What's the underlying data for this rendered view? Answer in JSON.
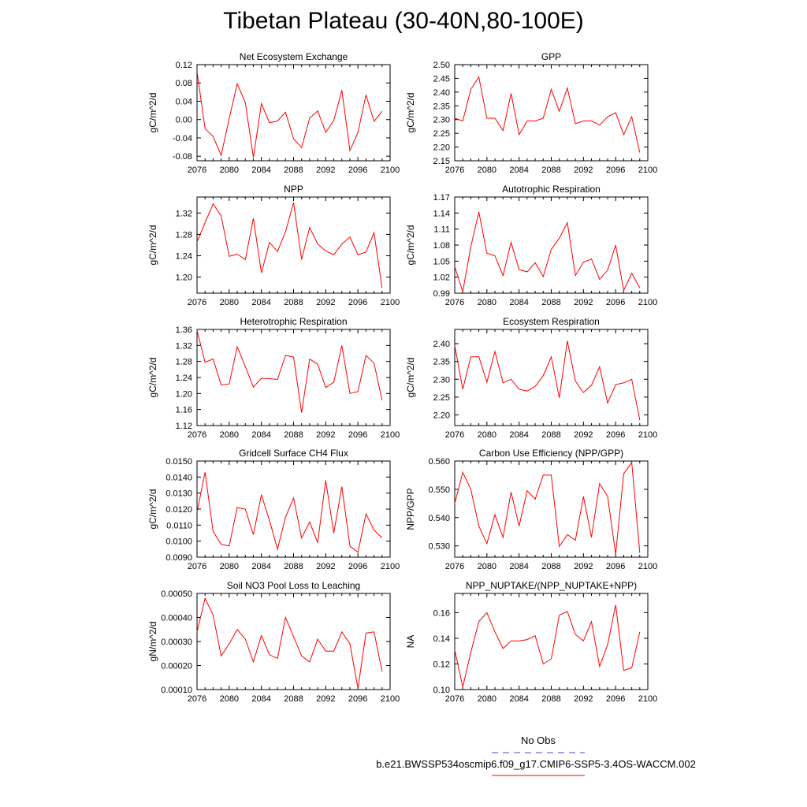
{
  "page": {
    "title": "Tibetan Plateau (30-40N,80-100E)"
  },
  "legend": {
    "obs_label": "No Obs",
    "obs_color": "#4444cc",
    "case_label": "b.e21.BWSSP534oscmip6.f09_g17.CMIP6-SSP5-3.4OS-WACCM.002",
    "case_color": "#ff0000"
  },
  "chart_data": [
    {
      "type": "line",
      "title": "Net Ecosystem Exchange",
      "ylabel": "gC/m^2/d",
      "xlim": [
        2076,
        2100
      ],
      "x_ticks": [
        "2076",
        "2080",
        "2084",
        "2088",
        "2092",
        "2096",
        "2100"
      ],
      "ylim": [
        -0.09,
        0.12
      ],
      "y_ticks": [
        "-0.08",
        "-0.04",
        "0.00",
        "0.04",
        "0.08",
        "0.12"
      ],
      "series": [
        {
          "color": "#ff0000",
          "x": [
            2076,
            2077,
            2078,
            2079,
            2080,
            2081,
            2082,
            2083,
            2084,
            2085,
            2086,
            2087,
            2088,
            2089,
            2090,
            2091,
            2092,
            2093,
            2094,
            2095,
            2096,
            2097,
            2098,
            2099
          ],
          "values": [
            0.105,
            -0.02,
            -0.037,
            -0.078,
            0.002,
            0.078,
            0.037,
            -0.083,
            0.035,
            -0.007,
            -0.003,
            0.016,
            -0.042,
            -0.061,
            0.003,
            0.019,
            -0.028,
            -0.002,
            0.064,
            -0.068,
            -0.028,
            0.054,
            -0.004,
            0.018
          ]
        }
      ]
    },
    {
      "type": "line",
      "title": "GPP",
      "ylabel": "gC/m^2/d",
      "xlim": [
        2076,
        2100
      ],
      "x_ticks": [
        "2076",
        "2080",
        "2084",
        "2088",
        "2092",
        "2096",
        "2100"
      ],
      "ylim": [
        2.15,
        2.5
      ],
      "y_ticks": [
        "2.15",
        "2.20",
        "2.25",
        "2.30",
        "2.35",
        "2.40",
        "2.45",
        "2.50"
      ],
      "series": [
        {
          "color": "#ff0000",
          "x": [
            2076,
            2077,
            2078,
            2079,
            2080,
            2081,
            2082,
            2083,
            2084,
            2085,
            2086,
            2087,
            2088,
            2089,
            2090,
            2091,
            2092,
            2093,
            2094,
            2095,
            2096,
            2097,
            2098,
            2099
          ],
          "values": [
            2.305,
            2.295,
            2.41,
            2.455,
            2.305,
            2.305,
            2.26,
            2.395,
            2.245,
            2.295,
            2.295,
            2.305,
            2.41,
            2.33,
            2.415,
            2.285,
            2.295,
            2.295,
            2.28,
            2.31,
            2.325,
            2.245,
            2.31,
            2.18
          ]
        }
      ]
    },
    {
      "type": "line",
      "title": "NPP",
      "ylabel": "gC/m^2/d",
      "xlim": [
        2076,
        2100
      ],
      "x_ticks": [
        "2076",
        "2080",
        "2084",
        "2088",
        "2092",
        "2096",
        "2100"
      ],
      "ylim": [
        1.17,
        1.35
      ],
      "y_ticks": [
        "1.20",
        "1.24",
        "1.28",
        "1.32"
      ],
      "series": [
        {
          "color": "#ff0000",
          "x": [
            2076,
            2077,
            2078,
            2079,
            2080,
            2081,
            2082,
            2083,
            2084,
            2085,
            2086,
            2087,
            2088,
            2089,
            2090,
            2091,
            2092,
            2093,
            2094,
            2095,
            2096,
            2097,
            2098,
            2099
          ],
          "values": [
            1.266,
            1.302,
            1.337,
            1.315,
            1.239,
            1.243,
            1.233,
            1.31,
            1.208,
            1.265,
            1.248,
            1.285,
            1.34,
            1.233,
            1.293,
            1.262,
            1.249,
            1.242,
            1.262,
            1.275,
            1.242,
            1.247,
            1.283,
            1.18
          ]
        }
      ]
    },
    {
      "type": "line",
      "title": "Autotrophic Respiration",
      "ylabel": "gC/m^2/d",
      "xlim": [
        2076,
        2100
      ],
      "x_ticks": [
        "2076",
        "2080",
        "2084",
        "2088",
        "2092",
        "2096",
        "2100"
      ],
      "ylim": [
        0.99,
        1.17
      ],
      "y_ticks": [
        "0.99",
        "1.02",
        "1.05",
        "1.08",
        "1.11",
        "1.14",
        "1.17"
      ],
      "series": [
        {
          "color": "#ff0000",
          "x": [
            2076,
            2077,
            2078,
            2079,
            2080,
            2081,
            2082,
            2083,
            2084,
            2085,
            2086,
            2087,
            2088,
            2089,
            2090,
            2091,
            2092,
            2093,
            2094,
            2095,
            2096,
            2097,
            2098,
            2099
          ],
          "values": [
            1.04,
            0.993,
            1.077,
            1.142,
            1.065,
            1.06,
            1.023,
            1.085,
            1.034,
            1.03,
            1.047,
            1.021,
            1.072,
            1.093,
            1.122,
            1.023,
            1.048,
            1.054,
            1.016,
            1.033,
            1.08,
            0.995,
            1.027,
            1.0
          ]
        }
      ]
    },
    {
      "type": "line",
      "title": "Heterotrophic Respiration",
      "ylabel": "gC/m^2/d",
      "xlim": [
        2076,
        2100
      ],
      "x_ticks": [
        "2076",
        "2080",
        "2084",
        "2088",
        "2092",
        "2096",
        "2100"
      ],
      "ylim": [
        1.12,
        1.36
      ],
      "y_ticks": [
        "1.12",
        "1.16",
        "1.20",
        "1.24",
        "1.28",
        "1.32",
        "1.36"
      ],
      "series": [
        {
          "color": "#ff0000",
          "x": [
            2076,
            2077,
            2078,
            2079,
            2080,
            2081,
            2082,
            2083,
            2084,
            2085,
            2086,
            2087,
            2088,
            2089,
            2090,
            2091,
            2092,
            2093,
            2094,
            2095,
            2096,
            2097,
            2098,
            2099
          ],
          "values": [
            1.357,
            1.278,
            1.286,
            1.221,
            1.224,
            1.317,
            1.267,
            1.216,
            1.238,
            1.237,
            1.235,
            1.295,
            1.291,
            1.152,
            1.286,
            1.273,
            1.215,
            1.228,
            1.32,
            1.2,
            1.205,
            1.295,
            1.276,
            1.183
          ]
        }
      ]
    },
    {
      "type": "line",
      "title": "Ecosystem Respiration",
      "ylabel": "gC/m^2/d",
      "xlim": [
        2076,
        2100
      ],
      "x_ticks": [
        "2076",
        "2080",
        "2084",
        "2088",
        "2092",
        "2096",
        "2100"
      ],
      "ylim": [
        2.17,
        2.44
      ],
      "y_ticks": [
        "2.20",
        "2.25",
        "2.30",
        "2.35",
        "2.40"
      ],
      "series": [
        {
          "color": "#ff0000",
          "x": [
            2076,
            2077,
            2078,
            2079,
            2080,
            2081,
            2082,
            2083,
            2084,
            2085,
            2086,
            2087,
            2088,
            2089,
            2090,
            2091,
            2092,
            2093,
            2094,
            2095,
            2096,
            2097,
            2098,
            2099
          ],
          "values": [
            2.395,
            2.272,
            2.363,
            2.363,
            2.292,
            2.378,
            2.29,
            2.3,
            2.272,
            2.267,
            2.28,
            2.31,
            2.363,
            2.248,
            2.408,
            2.295,
            2.263,
            2.283,
            2.335,
            2.233,
            2.285,
            2.29,
            2.3,
            2.185
          ]
        }
      ]
    },
    {
      "type": "line",
      "title": "Gridcell Surface CH4 Flux",
      "ylabel": "gC/m^2/d",
      "xlim": [
        2076,
        2100
      ],
      "x_ticks": [
        "2076",
        "2080",
        "2084",
        "2088",
        "2092",
        "2096",
        "2100"
      ],
      "ylim": [
        0.009,
        0.015
      ],
      "y_ticks": [
        "0.0090",
        "0.0100",
        "0.0110",
        "0.0120",
        "0.0130",
        "0.0140",
        "0.0150"
      ],
      "series": [
        {
          "color": "#ff0000",
          "x": [
            2076,
            2077,
            2078,
            2079,
            2080,
            2081,
            2082,
            2083,
            2084,
            2085,
            2086,
            2087,
            2088,
            2089,
            2090,
            2091,
            2092,
            2093,
            2094,
            2095,
            2096,
            2097,
            2098,
            2099
          ],
          "values": [
            0.0118,
            0.0143,
            0.0106,
            0.0098,
            0.0097,
            0.0121,
            0.012,
            0.0104,
            0.0129,
            0.0113,
            0.0095,
            0.0115,
            0.0127,
            0.0102,
            0.0112,
            0.0099,
            0.0138,
            0.0105,
            0.0134,
            0.0097,
            0.0093,
            0.0117,
            0.0107,
            0.0102
          ]
        }
      ]
    },
    {
      "type": "line",
      "title": "Carbon Use Efficiency (NPP/GPP)",
      "ylabel": "NPP/GPP",
      "xlim": [
        2076,
        2100
      ],
      "x_ticks": [
        "2076",
        "2080",
        "2084",
        "2088",
        "2092",
        "2096",
        "2100"
      ],
      "ylim": [
        0.526,
        0.56
      ],
      "y_ticks": [
        "0.530",
        "0.540",
        "0.550",
        "0.560"
      ],
      "series": [
        {
          "color": "#ff0000",
          "x": [
            2076,
            2077,
            2078,
            2079,
            2080,
            2081,
            2082,
            2083,
            2084,
            2085,
            2086,
            2087,
            2088,
            2089,
            2090,
            2091,
            2092,
            2093,
            2094,
            2095,
            2096,
            2097,
            2098,
            2099
          ],
          "values": [
            0.545,
            0.556,
            0.55,
            0.537,
            0.5308,
            0.541,
            0.533,
            0.549,
            0.537,
            0.5495,
            0.5465,
            0.555,
            0.555,
            0.5298,
            0.534,
            0.532,
            0.5475,
            0.533,
            0.552,
            0.5475,
            0.527,
            0.5555,
            0.5595,
            0.5275
          ]
        }
      ]
    },
    {
      "type": "line",
      "title": "Soil NO3 Pool Loss to Leaching",
      "ylabel": "gN/m^2/d",
      "xlim": [
        2076,
        2100
      ],
      "x_ticks": [
        "2076",
        "2080",
        "2084",
        "2088",
        "2092",
        "2096",
        "2100"
      ],
      "ylim": [
        0.0001,
        0.0005
      ],
      "y_ticks": [
        "0.00010",
        "0.00020",
        "0.00030",
        "0.00040",
        "0.00050"
      ],
      "series": [
        {
          "color": "#ff0000",
          "x": [
            2076,
            2077,
            2078,
            2079,
            2080,
            2081,
            2082,
            2083,
            2084,
            2085,
            2086,
            2087,
            2088,
            2089,
            2090,
            2091,
            2092,
            2093,
            2094,
            2095,
            2096,
            2097,
            2098,
            2099
          ],
          "values": [
            0.00034,
            0.00048,
            0.00041,
            0.00024,
            0.00029,
            0.00035,
            0.00031,
            0.000215,
            0.000325,
            0.000245,
            0.00023,
            0.0004,
            0.00032,
            0.00024,
            0.000215,
            0.00031,
            0.00026,
            0.00026,
            0.00034,
            0.00029,
            0.000105,
            0.000335,
            0.00034,
            0.000175
          ]
        }
      ]
    },
    {
      "type": "line",
      "title": "NPP_NUPTAKE/(NPP_NUPTAKE+NPP)",
      "ylabel": "NA",
      "xlim": [
        2076,
        2100
      ],
      "x_ticks": [
        "2076",
        "2080",
        "2084",
        "2088",
        "2092",
        "2096",
        "2100"
      ],
      "ylim": [
        0.1,
        0.175
      ],
      "y_ticks": [
        "0.10",
        "0.12",
        "0.14",
        "0.16"
      ],
      "series": [
        {
          "color": "#ff0000",
          "x": [
            2076,
            2077,
            2078,
            2079,
            2080,
            2081,
            2082,
            2083,
            2084,
            2085,
            2086,
            2087,
            2088,
            2089,
            2090,
            2091,
            2092,
            2093,
            2094,
            2095,
            2096,
            2097,
            2098,
            2099
          ],
          "values": [
            0.131,
            0.102,
            0.129,
            0.153,
            0.16,
            0.145,
            0.132,
            0.138,
            0.138,
            0.139,
            0.142,
            0.12,
            0.124,
            0.158,
            0.161,
            0.143,
            0.138,
            0.153,
            0.118,
            0.135,
            0.166,
            0.115,
            0.117,
            0.145
          ]
        }
      ]
    }
  ]
}
